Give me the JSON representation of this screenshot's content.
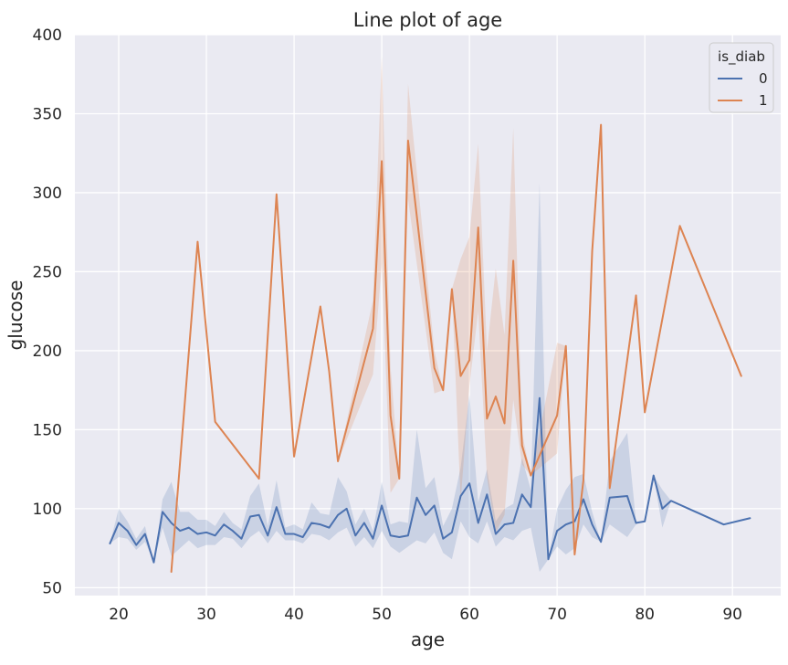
{
  "chart_data": {
    "type": "line",
    "title": "Line plot of age",
    "xlabel": "age",
    "ylabel": "glucose",
    "xlim": [
      15,
      95.5
    ],
    "ylim": [
      45,
      400
    ],
    "xticks": [
      20,
      30,
      40,
      50,
      60,
      70,
      80,
      90
    ],
    "yticks": [
      50,
      100,
      150,
      200,
      250,
      300,
      350,
      400
    ],
    "grid": true,
    "legend": {
      "title": "is_diab",
      "placement": "top-right"
    },
    "series": [
      {
        "name": "0",
        "color": "#4c72b0",
        "x": [
          19,
          20,
          21,
          22,
          23,
          24,
          25,
          26,
          27,
          28,
          29,
          30,
          31,
          32,
          33,
          34,
          35,
          36,
          37,
          38,
          39,
          40,
          41,
          42,
          43,
          44,
          45,
          46,
          47,
          48,
          49,
          50,
          51,
          52,
          53,
          54,
          55,
          56,
          57,
          58,
          59,
          60,
          61,
          62,
          63,
          64,
          65,
          66,
          67,
          68,
          69,
          70,
          71,
          72,
          73,
          74,
          75,
          76,
          78,
          79,
          80,
          81,
          82,
          83,
          89,
          92
        ],
        "y": [
          78,
          91,
          86,
          77,
          84,
          66,
          98,
          91,
          86,
          88,
          84,
          85,
          83,
          90,
          86,
          81,
          95,
          96,
          83,
          101,
          84,
          84,
          82,
          91,
          90,
          88,
          96,
          100,
          83,
          91,
          81,
          102,
          83,
          82,
          83,
          107,
          96,
          102,
          81,
          85,
          108,
          116,
          91,
          109,
          84,
          90,
          91,
          109,
          101,
          170,
          68,
          86,
          90,
          92,
          106,
          90,
          79,
          107,
          108,
          91,
          92,
          121,
          100,
          105,
          90,
          94
        ],
        "ci_lower": [
          78,
          82,
          81,
          74,
          79,
          66,
          88,
          70,
          75,
          80,
          75,
          77,
          77,
          82,
          81,
          75,
          82,
          86,
          78,
          86,
          80,
          80,
          78,
          84,
          83,
          80,
          85,
          88,
          76,
          82,
          75,
          86,
          76,
          72,
          76,
          80,
          78,
          85,
          72,
          68,
          92,
          82,
          78,
          92,
          76,
          82,
          80,
          86,
          88,
          60,
          68,
          76,
          71,
          75,
          90,
          82,
          79,
          90,
          82,
          90,
          92,
          121,
          88,
          105,
          90,
          94
        ],
        "ci_upper": [
          78,
          100,
          92,
          81,
          89,
          66,
          106,
          117,
          98,
          98,
          93,
          93,
          89,
          98,
          91,
          87,
          108,
          116,
          89,
          118,
          88,
          90,
          87,
          104,
          97,
          96,
          120,
          111,
          90,
          100,
          86,
          117,
          90,
          92,
          91,
          150,
          113,
          120,
          89,
          100,
          126,
          172,
          104,
          125,
          92,
          100,
          103,
          132,
          112,
          306,
          68,
          100,
          112,
          120,
          122,
          98,
          79,
          130,
          148,
          92,
          92,
          121,
          112,
          105,
          90,
          94
        ]
      },
      {
        "name": "1",
        "color": "#dd8452",
        "x": [
          26,
          29,
          31,
          36,
          38,
          40,
          43,
          44,
          45,
          49,
          50,
          51,
          52,
          53,
          56,
          57,
          58,
          59,
          60,
          61,
          62,
          63,
          64,
          65,
          66,
          67,
          70,
          71,
          72,
          73,
          74,
          75,
          76,
          79,
          80,
          84,
          91
        ],
        "y": [
          60,
          269,
          155,
          119,
          299,
          133,
          228,
          187,
          130,
          214,
          320,
          159,
          119,
          333,
          189,
          175,
          239,
          184,
          194,
          278,
          157,
          171,
          154,
          257,
          140,
          121,
          159,
          203,
          71,
          118,
          263,
          343,
          113,
          235,
          161,
          279,
          184
        ],
        "ci_lower": [
          60,
          269,
          155,
          119,
          299,
          133,
          228,
          187,
          130,
          185,
          255,
          110,
          119,
          296,
          173,
          175,
          239,
          105,
          178,
          225,
          120,
          85,
          96,
          169,
          128,
          121,
          135,
          203,
          71,
          118,
          263,
          343,
          113,
          235,
          161,
          279,
          184
        ],
        "ci_upper": [
          60,
          269,
          155,
          119,
          299,
          133,
          228,
          187,
          130,
          232,
          386,
          190,
          119,
          369,
          200,
          175,
          239,
          258,
          272,
          331,
          200,
          252,
          210,
          341,
          148,
          121,
          205,
          203,
          71,
          118,
          263,
          343,
          113,
          235,
          161,
          279,
          184
        ]
      }
    ]
  }
}
